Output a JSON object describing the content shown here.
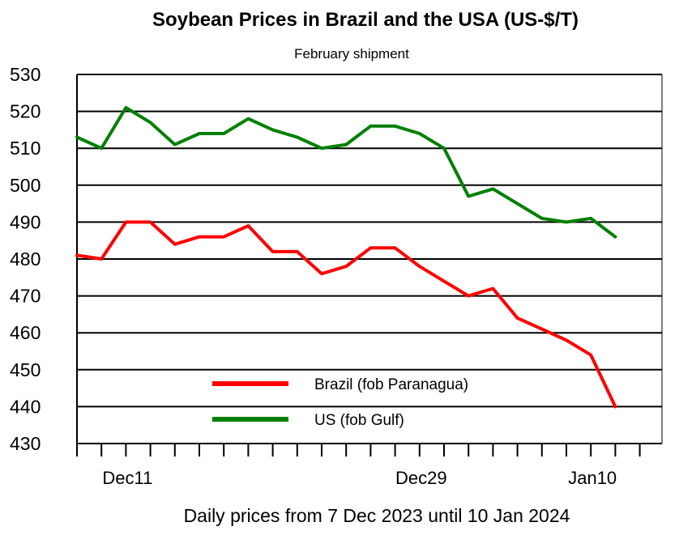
{
  "chart_data": {
    "type": "line",
    "title": "Soybean Prices in Brazil and the USA  (US-$/T)",
    "subtitle": "February shipment",
    "xlabel": "Daily prices from 7 Dec 2023 until 10 Jan 2024",
    "ylabel": "",
    "ylim": [
      430,
      530
    ],
    "yticks": [
      "530",
      "520",
      "510",
      "500",
      "490",
      "480",
      "470",
      "460",
      "450",
      "440",
      "430"
    ],
    "grid": true,
    "x_tick_labels": [
      {
        "label": "Dec11",
        "index": 2
      },
      {
        "label": "Dec29",
        "index": 14
      },
      {
        "label": "Jan10",
        "index": 21
      }
    ],
    "x_count": 23,
    "legend_position": "bottom-center",
    "series": [
      {
        "name": "Brazil (fob Paranagua)",
        "color": "#ff0000",
        "values": [
          481,
          480,
          490,
          490,
          484,
          486,
          486,
          489,
          482,
          482,
          476,
          478,
          483,
          483,
          478,
          474,
          470,
          472,
          464,
          461,
          458,
          454,
          440
        ]
      },
      {
        "name": "US (fob Gulf)",
        "color": "#008000",
        "values": [
          513,
          510,
          521,
          517,
          511,
          514,
          514,
          518,
          515,
          513,
          510,
          511,
          516,
          516,
          514,
          510,
          497,
          499,
          495,
          491,
          490,
          491,
          486
        ]
      }
    ]
  }
}
